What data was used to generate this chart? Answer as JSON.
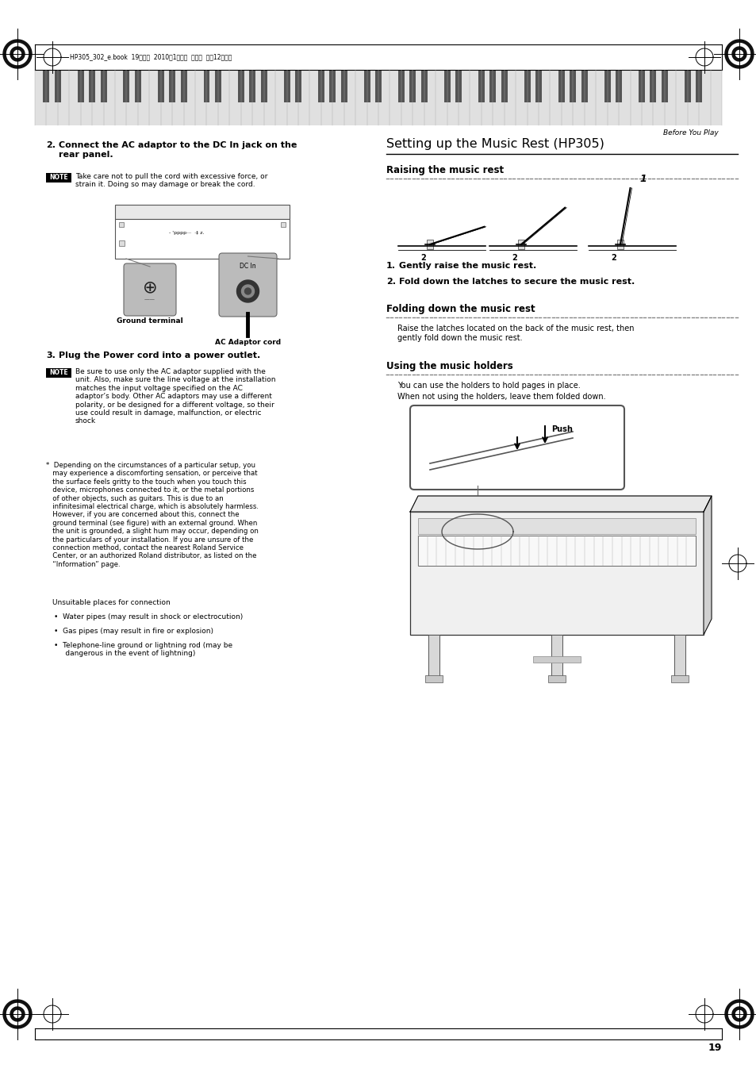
{
  "bg_color": "#ffffff",
  "page_width": 9.54,
  "page_height": 13.51,
  "header_text": "HP305_302_e.book  19ページ  2010年1月５日  火曜日  午後12時２分",
  "header_right": "Before You Play",
  "page_number": "19",
  "section_title": "Setting up the Music Rest (HP305)",
  "subsection1": "Raising the music rest",
  "step1_1": "Gently raise the music rest.",
  "step1_2": "Fold down the latches to secure the music rest.",
  "subsection2": "Folding down the music rest",
  "body2": "Raise the latches located on the back of the music rest, then\ngently fold down the music rest.",
  "subsection3": "Using the music holders",
  "body3a": "You can use the holders to hold pages in place.",
  "body3b": "When not using the holders, leave them folded down.",
  "left_step2_bold": "Connect the AC adaptor to the DC In jack on the\nrear panel.",
  "left_note1": "Take care not to pull the cord with excessive force, or\nstrain it. Doing so may damage or break the cord.",
  "left_step3_bold": "Plug the Power cord into a power outlet.",
  "left_note2": "Be sure to use only the AC adaptor supplied with the\nunit. Also, make sure the line voltage at the installation\nmatches the input voltage specified on the AC\nadaptor’s body. Other AC adaptors may use a different\npolarity, or be designed for a different voltage, so their\nuse could result in damage, malfunction, or electric\nshock",
  "left_bullet1": "Depending on the circumstances of a particular setup, you\nmay experience a discomforting sensation, or perceive that\nthe surface feels gritty to the touch when you touch this\ndevice, microphones connected to it, or the metal portions\nof other objects, such as guitars. This is due to an\ninfinitesimal electrical charge, which is absolutely harmless.\nHowever, if you are concerned about this, connect the\nground terminal (see figure) with an external ground. When\nthe unit is grounded, a slight hum may occur, depending on\nthe particulars of your installation. If you are unsure of the\nconnection method, contact the nearest Roland Service\nCenter, or an authorized Roland distributor, as listed on the\n“Information” page.",
  "unsuitable_header": "Unsuitable places for connection",
  "bullet_items": [
    "Water pipes (may result in shock or electrocution)",
    "Gas pipes (may result in fire or explosion)",
    "Telephone-line ground or lightning rod (may be\n    dangerous in the event of lightning)"
  ],
  "ground_terminal_label": "Ground terminal",
  "ac_adaptor_label": "AC Adaptor cord",
  "push_label": "Push"
}
